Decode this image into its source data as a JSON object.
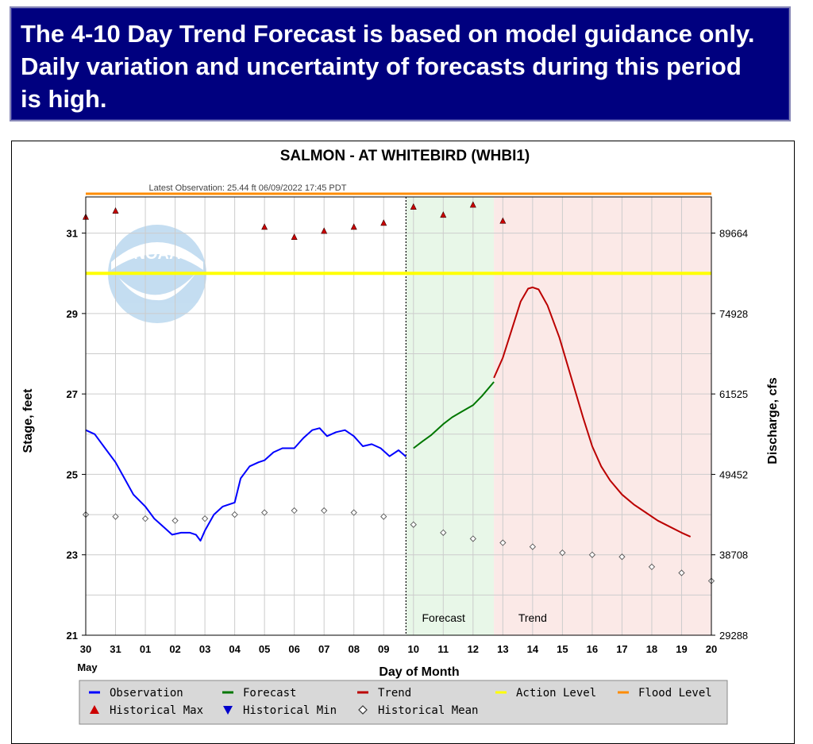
{
  "banner": {
    "text": "The 4-10 Day Trend Forecast is based on model guidance only. Daily variation and uncertainty of forecasts during this period is high."
  },
  "chart_data": {
    "type": "line",
    "title": "SALMON - AT WHITEBIRD  (WHBI1)",
    "subtitle": "Latest Observation: 25.44 ft 06/09/2022 17:45 PDT",
    "xlabel": "Day of Month",
    "x_month_label": "May",
    "ylabel": "Stage, feet",
    "y2label": "Discharge, cfs",
    "ylim": [
      21,
      31.9
    ],
    "xlim": [
      0,
      21
    ],
    "x_ticks": [
      "30",
      "31",
      "01",
      "02",
      "03",
      "04",
      "05",
      "06",
      "07",
      "08",
      "09",
      "10",
      "11",
      "12",
      "13",
      "14",
      "15",
      "16",
      "17",
      "18",
      "19",
      "20"
    ],
    "y_ticks": [
      21,
      23,
      25,
      27,
      29,
      31
    ],
    "y2_ticks": [
      {
        "stage": 21,
        "label": "29288"
      },
      {
        "stage": 23,
        "label": "38708"
      },
      {
        "stage": 25,
        "label": "49452"
      },
      {
        "stage": 27,
        "label": "61525"
      },
      {
        "stage": 29,
        "label": "74928"
      },
      {
        "stage": 31,
        "label": "89664"
      }
    ],
    "flood_level": 31.98,
    "action_level": 30.0,
    "forecast_start": 10.75,
    "trend_start": 13.7,
    "region_labels": {
      "forecast": "Forecast",
      "trend": "Trend"
    },
    "series": [
      {
        "name": "Observation",
        "color": "#0000ff",
        "points": [
          [
            0,
            26.1
          ],
          [
            0.3,
            26.0
          ],
          [
            0.6,
            25.7
          ],
          [
            1,
            25.3
          ],
          [
            1.3,
            24.9
          ],
          [
            1.6,
            24.5
          ],
          [
            2,
            24.2
          ],
          [
            2.3,
            23.9
          ],
          [
            2.6,
            23.7
          ],
          [
            2.9,
            23.5
          ],
          [
            3.2,
            23.55
          ],
          [
            3.5,
            23.55
          ],
          [
            3.7,
            23.5
          ],
          [
            3.85,
            23.35
          ],
          [
            4.0,
            23.6
          ],
          [
            4.3,
            24.0
          ],
          [
            4.6,
            24.2
          ],
          [
            5,
            24.3
          ],
          [
            5.2,
            24.9
          ],
          [
            5.5,
            25.2
          ],
          [
            5.8,
            25.3
          ],
          [
            6,
            25.35
          ],
          [
            6.3,
            25.55
          ],
          [
            6.6,
            25.65
          ],
          [
            7,
            25.65
          ],
          [
            7.3,
            25.9
          ],
          [
            7.6,
            26.1
          ],
          [
            7.85,
            26.15
          ],
          [
            8.1,
            25.95
          ],
          [
            8.4,
            26.05
          ],
          [
            8.7,
            26.1
          ],
          [
            9,
            25.95
          ],
          [
            9.3,
            25.7
          ],
          [
            9.6,
            25.75
          ],
          [
            9.9,
            25.65
          ],
          [
            10.2,
            25.45
          ],
          [
            10.5,
            25.6
          ],
          [
            10.75,
            25.44
          ]
        ]
      },
      {
        "name": "Forecast",
        "color": "#007700",
        "points": [
          [
            11,
            25.65
          ],
          [
            11.3,
            25.82
          ],
          [
            11.6,
            25.98
          ],
          [
            12,
            26.25
          ],
          [
            12.3,
            26.42
          ],
          [
            12.6,
            26.55
          ],
          [
            13,
            26.72
          ],
          [
            13.3,
            26.95
          ],
          [
            13.7,
            27.3
          ]
        ]
      },
      {
        "name": "Trend",
        "color": "#bb0000",
        "points": [
          [
            13.7,
            27.4
          ],
          [
            14,
            27.9
          ],
          [
            14.3,
            28.6
          ],
          [
            14.6,
            29.3
          ],
          [
            14.85,
            29.62
          ],
          [
            15,
            29.65
          ],
          [
            15.2,
            29.6
          ],
          [
            15.5,
            29.2
          ],
          [
            15.9,
            28.4
          ],
          [
            16.3,
            27.4
          ],
          [
            16.7,
            26.4
          ],
          [
            17,
            25.7
          ],
          [
            17.3,
            25.2
          ],
          [
            17.6,
            24.85
          ],
          [
            18,
            24.5
          ],
          [
            18.4,
            24.25
          ],
          [
            18.8,
            24.05
          ],
          [
            19.2,
            23.85
          ],
          [
            19.6,
            23.7
          ],
          [
            20,
            23.55
          ],
          [
            20.3,
            23.45
          ]
        ]
      },
      {
        "name": "Action Level",
        "color": "#ffff00",
        "values": [
          30.0
        ]
      },
      {
        "name": "Flood Level",
        "color": "#ff8c00",
        "values": [
          31.98
        ]
      },
      {
        "name": "Historical Max",
        "color": "#cc0000",
        "points": [
          [
            0,
            31.4
          ],
          [
            1,
            31.55
          ],
          [
            6,
            31.15
          ],
          [
            7,
            30.9
          ],
          [
            8,
            31.05
          ],
          [
            9,
            31.15
          ],
          [
            10,
            31.25
          ],
          [
            11,
            31.65
          ],
          [
            12,
            31.45
          ],
          [
            13,
            31.7
          ],
          [
            14,
            31.3
          ]
        ]
      },
      {
        "name": "Historical Min",
        "color": "#0000cc",
        "points": []
      },
      {
        "name": "Historical Mean",
        "color": "#555555",
        "points": [
          [
            0,
            24.0
          ],
          [
            1,
            23.95
          ],
          [
            2,
            23.9
          ],
          [
            3,
            23.85
          ],
          [
            4,
            23.9
          ],
          [
            5,
            24.0
          ],
          [
            6,
            24.05
          ],
          [
            7,
            24.1
          ],
          [
            8,
            24.1
          ],
          [
            9,
            24.05
          ],
          [
            10,
            23.95
          ],
          [
            11,
            23.75
          ],
          [
            12,
            23.55
          ],
          [
            13,
            23.4
          ],
          [
            14,
            23.3
          ],
          [
            15,
            23.2
          ],
          [
            16,
            23.05
          ],
          [
            17,
            23.0
          ],
          [
            18,
            22.95
          ],
          [
            19,
            22.7
          ],
          [
            20,
            22.55
          ],
          [
            21,
            22.35
          ]
        ]
      }
    ],
    "legend": {
      "position": "bottom",
      "items": [
        {
          "label": "Observation",
          "kind": "line",
          "color": "#0000ff"
        },
        {
          "label": "Forecast",
          "kind": "line",
          "color": "#007700"
        },
        {
          "label": "Trend",
          "kind": "line",
          "color": "#bb0000"
        },
        {
          "label": "Action Level",
          "kind": "line",
          "color": "#ffff00"
        },
        {
          "label": "Flood Level",
          "kind": "line",
          "color": "#ff8c00"
        },
        {
          "label": "Historical Max",
          "kind": "tri-up",
          "color": "#cc0000"
        },
        {
          "label": "Historical Min",
          "kind": "tri-down",
          "color": "#0000cc"
        },
        {
          "label": "Historical Mean",
          "kind": "diamond",
          "color": "#333333"
        }
      ]
    },
    "watermark": "NOAA"
  }
}
